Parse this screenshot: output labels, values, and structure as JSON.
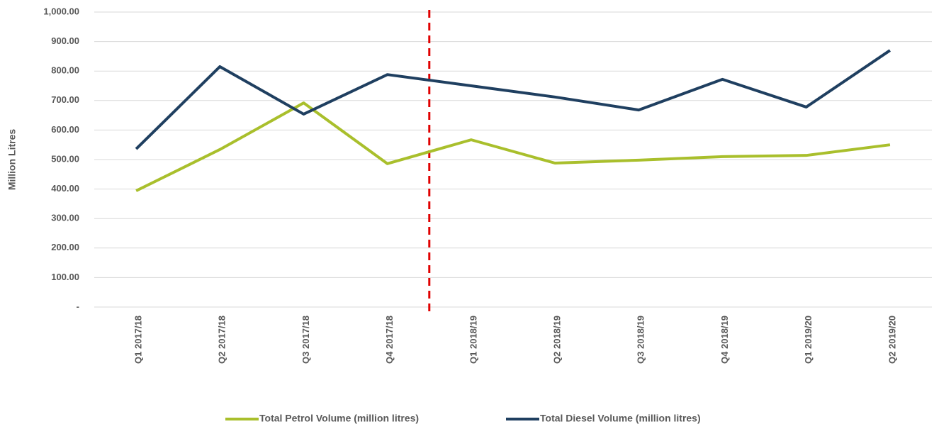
{
  "chart_data": {
    "type": "line",
    "y_label": "Million Litres",
    "categories": [
      "Q1 2017/18",
      "Q2 2017/18",
      "Q3 2017/18",
      "Q4 2017/18",
      "Q1 2018/19",
      "Q2 2018/19",
      "Q3 2018/19",
      "Q4 2018/19",
      "Q1 2019/20",
      "Q2 2019/20"
    ],
    "series": [
      {
        "name": "Total Petrol Volume (million litres)",
        "color": "#a9bf2c",
        "values": [
          394,
          534,
          692,
          486,
          567,
          488,
          498,
          510,
          514,
          550
        ]
      },
      {
        "name": "Total Diesel Volume (million litres)",
        "color": "#1f3f60",
        "values": [
          536,
          815,
          654,
          788,
          750,
          712,
          668,
          772,
          678,
          870
        ]
      }
    ],
    "ylim": [
      0,
      1000
    ],
    "yticks": [
      {
        "value": 0,
        "label": "-"
      },
      {
        "value": 100,
        "label": "100.00"
      },
      {
        "value": 200,
        "label": "200.00"
      },
      {
        "value": 300,
        "label": "300.00"
      },
      {
        "value": 400,
        "label": "400.00"
      },
      {
        "value": 500,
        "label": "500.00"
      },
      {
        "value": 600,
        "label": "600.00"
      },
      {
        "value": 700,
        "label": "700.00"
      },
      {
        "value": 800,
        "label": "800.00"
      },
      {
        "value": 900,
        "label": "900.00"
      },
      {
        "value": 1000,
        "label": "1,000.00"
      }
    ],
    "grid": true,
    "legend": "bottom",
    "divider": {
      "after": "Q4 2017/18",
      "color": "#e00000"
    }
  }
}
